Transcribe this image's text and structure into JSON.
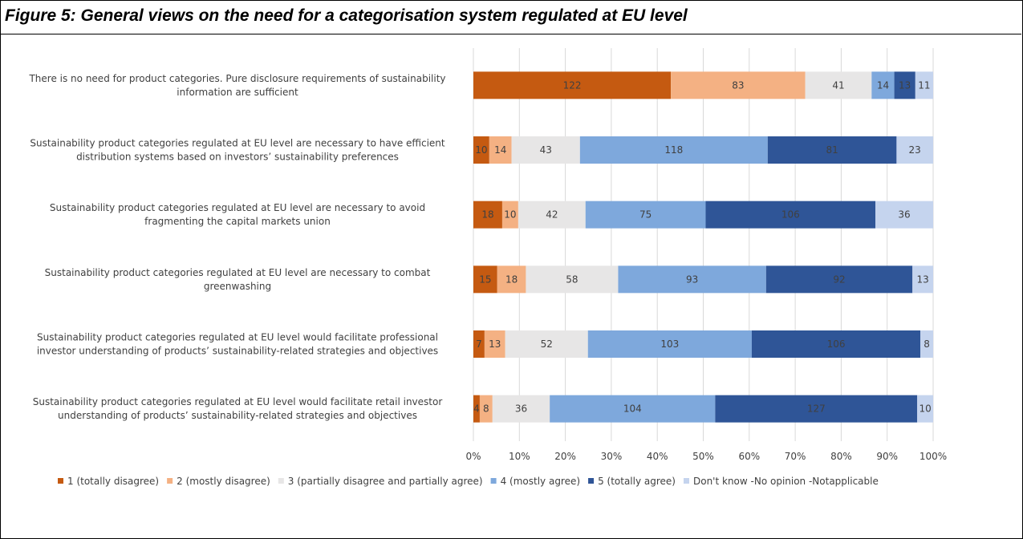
{
  "figure": {
    "title": "Figure 5: General views on the need for a categorisation system regulated at EU level"
  },
  "chart_data": {
    "type": "bar",
    "orientation": "horizontal",
    "stacked": "percent",
    "title": "Figure 5: General views on the need for a categorisation system regulated at EU level",
    "xlim": [
      0,
      100
    ],
    "x_ticks": [
      "0%",
      "10%",
      "20%",
      "30%",
      "40%",
      "50%",
      "60%",
      "70%",
      "80%",
      "90%",
      "100%"
    ],
    "grid": "vertical gridlines",
    "legend_position": "bottom",
    "categories": [
      [
        "There is no need for product categories. Pure disclosure requirements of sustainability",
        "information are sufficient"
      ],
      [
        "Sustainability product categories regulated at EU level are necessary to have efficient",
        "distribution systems based on investors’ sustainability preferences"
      ],
      [
        "Sustainability product categories regulated at EU level are necessary to avoid",
        "fragmenting the capital markets union"
      ],
      [
        "Sustainability product categories regulated at EU level are necessary to combat",
        "greenwashing"
      ],
      [
        "Sustainability product categories regulated at EU level would facilitate professional",
        "investor understanding of products’ sustainability-related strategies and objectives"
      ],
      [
        "Sustainability product categories regulated at EU level would facilitate retail investor",
        "understanding of products’ sustainability-related strategies and objectives"
      ]
    ],
    "series": [
      {
        "name": "1 (totally disagree)",
        "color": "#C55A11",
        "label_color": "#404040",
        "values": [
          122,
          10,
          18,
          15,
          7,
          4
        ]
      },
      {
        "name": "2 (mostly disagree)",
        "color": "#F4B183",
        "label_color": "#404040",
        "values": [
          83,
          14,
          10,
          18,
          13,
          8
        ]
      },
      {
        "name": "3 (partially disagree and partially agree)",
        "color": "#E7E6E6",
        "label_color": "#404040",
        "values": [
          41,
          43,
          42,
          58,
          52,
          36
        ]
      },
      {
        "name": "4 (mostly agree)",
        "color": "#7EA8DC",
        "label_color": "#404040",
        "values": [
          14,
          118,
          75,
          93,
          103,
          104
        ]
      },
      {
        "name": "5 (totally agree)",
        "color": "#2F5597",
        "label_color": "#404040",
        "values": [
          13,
          81,
          106,
          92,
          106,
          127
        ]
      },
      {
        "name": "Don't know -No opinion -Notapplicable",
        "color": "#C5D4EE",
        "label_color": "#404040",
        "values": [
          11,
          23,
          36,
          13,
          8,
          10
        ]
      }
    ]
  }
}
